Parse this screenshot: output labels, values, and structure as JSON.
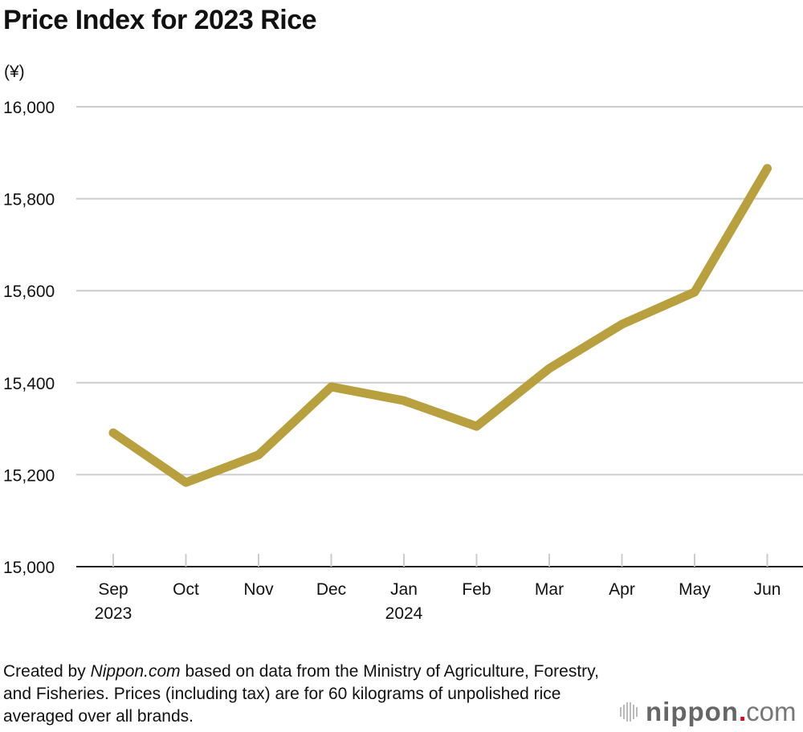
{
  "chart_data": {
    "type": "line",
    "title": "Price Index for 2023 Rice",
    "ylabel": "(¥)",
    "xlabel": "",
    "categories": [
      "Sep\n2023",
      "Oct",
      "Nov",
      "Dec",
      "Jan\n2024",
      "Feb",
      "Mar",
      "Apr",
      "May",
      "Jun"
    ],
    "values": [
      15291,
      15183,
      15243,
      15391,
      15361,
      15305,
      15431,
      15527,
      15597,
      15866
    ],
    "ylim": [
      15000,
      16000
    ],
    "yticks": [
      15000,
      15200,
      15400,
      15600,
      15800,
      16000
    ],
    "ytick_labels": [
      "15,000",
      "15,200",
      "15,400",
      "15,600",
      "15,800",
      "16,000"
    ],
    "grid": true,
    "line_color": "#b9a03e"
  },
  "note": {
    "prefix": "Created by ",
    "source": "Nippon.com",
    "rest": " based on data from the Ministry of Agriculture, Forestry, and Fisheries. Prices (including tax) are for 60 kilograms of unpolished rice averaged over all brands."
  },
  "logo": {
    "name": "nippon",
    "dot": ".",
    "tld": "com"
  }
}
